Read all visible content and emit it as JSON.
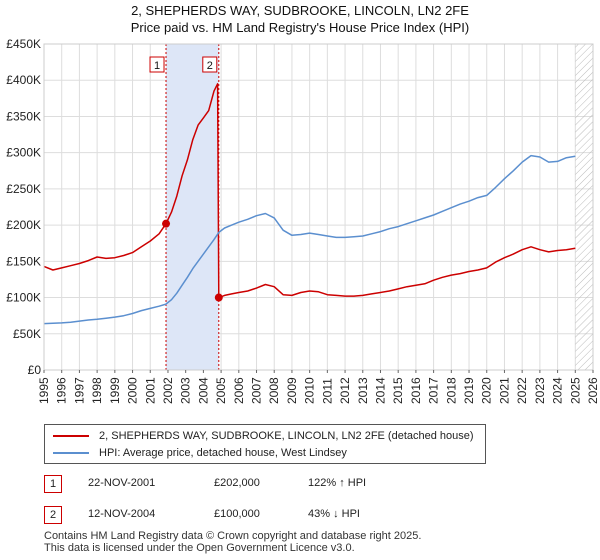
{
  "title_line1": "2, SHEPHERDS WAY, SUDBROOKE, LINCOLN, LN2 2FE",
  "title_line2": "Price paid vs. HM Land Registry's House Price Index (HPI)",
  "legend": {
    "property": "2, SHEPHERDS WAY, SUDBROOKE, LINCOLN, LN2 2FE (detached house)",
    "hpi": "HPI: Average price, detached house, West Lindsey"
  },
  "colors": {
    "property": "#cc0000",
    "hpi": "#5b8fcf",
    "shade": "#dde6f7",
    "marker_line": "#cc0000"
  },
  "events": [
    {
      "id": "1",
      "date": "22-NOV-2001",
      "price": "£202,000",
      "hpi_change": "122% ↑ HPI",
      "year": 2001.89,
      "value": 202000
    },
    {
      "id": "2",
      "date": "12-NOV-2004",
      "price": "£100,000",
      "hpi_change": "43% ↓ HPI",
      "year": 2004.87,
      "value": 100000
    }
  ],
  "footer_line1": "Contains HM Land Registry data © Crown copyright and database right 2025.",
  "footer_line2": "This data is licensed under the Open Government Licence v3.0.",
  "chart_data": {
    "type": "line",
    "xlim": [
      1995,
      2026
    ],
    "ylim": [
      0,
      450000
    ],
    "x_ticks": [
      "1995",
      "1996",
      "1997",
      "1998",
      "1999",
      "2000",
      "2001",
      "2002",
      "2003",
      "2004",
      "2005",
      "2006",
      "2007",
      "2008",
      "2009",
      "2010",
      "2011",
      "2012",
      "2013",
      "2014",
      "2015",
      "2016",
      "2017",
      "2018",
      "2019",
      "2020",
      "2021",
      "2022",
      "2023",
      "2024",
      "2025",
      "2026"
    ],
    "y_ticks": [
      {
        "value": 0,
        "label": "£0"
      },
      {
        "value": 50000,
        "label": "£50K"
      },
      {
        "value": 100000,
        "label": "£100K"
      },
      {
        "value": 150000,
        "label": "£150K"
      },
      {
        "value": 200000,
        "label": "£200K"
      },
      {
        "value": 250000,
        "label": "£250K"
      },
      {
        "value": 300000,
        "label": "£300K"
      },
      {
        "value": 350000,
        "label": "£350K"
      },
      {
        "value": 400000,
        "label": "£400K"
      },
      {
        "value": 450000,
        "label": "£450K"
      }
    ],
    "highlight_range": [
      2001.89,
      2004.87
    ],
    "hatched_after": 2025.0,
    "series": [
      {
        "name": "2, SHEPHERDS WAY, SUDBROOKE, LINCOLN, LN2 2FE (detached house)",
        "color_key": "property",
        "x": [
          1995.0,
          1995.5,
          1996.0,
          1996.5,
          1997.0,
          1997.5,
          1998.0,
          1998.5,
          1999.0,
          1999.5,
          2000.0,
          2000.5,
          2001.0,
          2001.5,
          2001.89,
          2002.2,
          2002.5,
          2002.8,
          2003.1,
          2003.4,
          2003.7,
          2004.0,
          2004.3,
          2004.6,
          2004.8,
          2004.87,
          2005.2,
          2005.6,
          2006.0,
          2006.5,
          2007.0,
          2007.5,
          2008.0,
          2008.5,
          2009.0,
          2009.5,
          2010.0,
          2010.5,
          2011.0,
          2011.5,
          2012.0,
          2012.5,
          2013.0,
          2013.5,
          2014.0,
          2014.5,
          2015.0,
          2015.5,
          2016.0,
          2016.5,
          2017.0,
          2017.5,
          2018.0,
          2018.5,
          2019.0,
          2019.5,
          2020.0,
          2020.5,
          2021.0,
          2021.5,
          2022.0,
          2022.5,
          2023.0,
          2023.5,
          2024.0,
          2024.5,
          2025.0
        ],
        "y": [
          143000,
          138000,
          141000,
          144000,
          147000,
          151000,
          156000,
          154000,
          155000,
          158000,
          162000,
          170000,
          178000,
          188000,
          202000,
          218000,
          240000,
          268000,
          290000,
          318000,
          338000,
          348000,
          358000,
          385000,
          395000,
          100000,
          103000,
          105000,
          107000,
          109000,
          113000,
          118000,
          115000,
          104000,
          103000,
          107000,
          109000,
          108000,
          104000,
          103000,
          102000,
          102000,
          103000,
          105000,
          107000,
          109000,
          112000,
          115000,
          117000,
          119000,
          124000,
          128000,
          131000,
          133000,
          136000,
          138000,
          141000,
          149000,
          155000,
          160000,
          166000,
          170000,
          166000,
          163000,
          165000,
          166000,
          168000
        ]
      },
      {
        "name": "HPI: Average price, detached house, West Lindsey",
        "color_key": "hpi",
        "x": [
          1995.0,
          1995.5,
          1996.0,
          1996.5,
          1997.0,
          1997.5,
          1998.0,
          1998.5,
          1999.0,
          1999.5,
          2000.0,
          2000.5,
          2001.0,
          2001.5,
          2001.89,
          2002.2,
          2002.5,
          2002.8,
          2003.1,
          2003.4,
          2003.7,
          2004.0,
          2004.3,
          2004.6,
          2004.87,
          2005.2,
          2005.6,
          2006.0,
          2006.5,
          2007.0,
          2007.5,
          2008.0,
          2008.5,
          2009.0,
          2009.5,
          2010.0,
          2010.5,
          2011.0,
          2011.5,
          2012.0,
          2012.5,
          2013.0,
          2013.5,
          2014.0,
          2014.5,
          2015.0,
          2015.5,
          2016.0,
          2016.5,
          2017.0,
          2017.5,
          2018.0,
          2018.5,
          2019.0,
          2019.5,
          2020.0,
          2020.5,
          2021.0,
          2021.5,
          2022.0,
          2022.5,
          2023.0,
          2023.5,
          2024.0,
          2024.5,
          2025.0
        ],
        "y": [
          64000,
          64500,
          65000,
          66000,
          67500,
          69000,
          70000,
          71500,
          73000,
          75000,
          78000,
          82000,
          85000,
          88000,
          91000,
          97000,
          106000,
          117000,
          128000,
          140000,
          150000,
          160000,
          170000,
          180000,
          190000,
          196000,
          200000,
          204000,
          208000,
          213000,
          216000,
          210000,
          193000,
          186000,
          187000,
          189000,
          187000,
          185000,
          183000,
          183000,
          184000,
          185000,
          188000,
          191000,
          195000,
          198000,
          202000,
          206000,
          210000,
          214000,
          219000,
          224000,
          229000,
          233000,
          238000,
          241000,
          252000,
          264000,
          275000,
          287000,
          296000,
          294000,
          287000,
          288000,
          293000,
          295000
        ]
      }
    ]
  }
}
